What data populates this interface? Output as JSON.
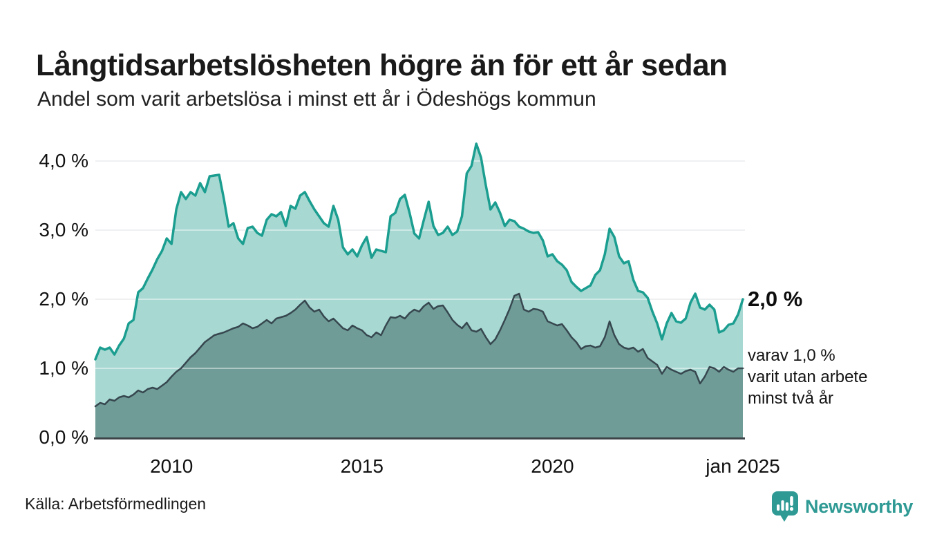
{
  "header": {
    "title": "Långtidsarbetslösheten högre än för ett år sedan",
    "subtitle": "Andel som varit arbetslösa i minst ett år i Ödeshögs kommun"
  },
  "chart_data": {
    "type": "area",
    "title": "Långtidsarbetslösheten högre än för ett år sedan",
    "subtitle": "Andel som varit arbetslösa i minst ett år i Ödeshögs kommun",
    "unit": "%",
    "x_start": 2008.0,
    "x_end": 2025.0,
    "ylim": [
      0,
      4.3
    ],
    "grid": "horizontal",
    "legend_position": "none",
    "x_ticks": [
      {
        "value": 2010,
        "label": "2010"
      },
      {
        "value": 2015,
        "label": "2015"
      },
      {
        "value": 2020,
        "label": "2020"
      },
      {
        "value": 2025,
        "label": "jan 2025"
      }
    ],
    "y_ticks": [
      {
        "value": 4,
        "label": "4,0 %"
      },
      {
        "value": 3,
        "label": "3,0 %"
      },
      {
        "value": 2,
        "label": "2,0 %"
      },
      {
        "value": 1,
        "label": "1,0 %"
      },
      {
        "value": 0,
        "label": "0,0 %"
      }
    ],
    "series": [
      {
        "name": "arbetslösa minst ett år",
        "latest_value": 2.0,
        "values": [
          1.13,
          1.3,
          1.27,
          1.3,
          1.2,
          1.33,
          1.43,
          1.65,
          1.7,
          2.1,
          2.16,
          2.3,
          2.43,
          2.58,
          2.7,
          2.88,
          2.8,
          3.3,
          3.55,
          3.45,
          3.55,
          3.5,
          3.68,
          3.55,
          3.78,
          3.79,
          3.8,
          3.45,
          3.05,
          3.1,
          2.88,
          2.8,
          3.03,
          3.05,
          2.96,
          2.92,
          3.15,
          3.23,
          3.2,
          3.26,
          3.06,
          3.35,
          3.31,
          3.5,
          3.55,
          3.42,
          3.3,
          3.2,
          3.1,
          3.05,
          3.35,
          3.15,
          2.75,
          2.65,
          2.72,
          2.62,
          2.78,
          2.9,
          2.6,
          2.72,
          2.7,
          2.68,
          3.2,
          3.25,
          3.45,
          3.51,
          3.25,
          2.95,
          2.88,
          3.15,
          3.41,
          3.06,
          2.93,
          2.96,
          3.05,
          2.93,
          2.98,
          3.2,
          3.82,
          3.93,
          4.25,
          4.05,
          3.65,
          3.3,
          3.4,
          3.25,
          3.06,
          3.15,
          3.13,
          3.05,
          3.02,
          2.98,
          2.96,
          2.97,
          2.85,
          2.62,
          2.65,
          2.55,
          2.5,
          2.42,
          2.25,
          2.18,
          2.12,
          2.16,
          2.2,
          2.35,
          2.42,
          2.65,
          3.02,
          2.9,
          2.62,
          2.52,
          2.55,
          2.28,
          2.12,
          2.1,
          2.02,
          1.82,
          1.65,
          1.42,
          1.65,
          1.8,
          1.68,
          1.66,
          1.72,
          1.95,
          2.08,
          1.88,
          1.85,
          1.92,
          1.85,
          1.52,
          1.55,
          1.63,
          1.65,
          1.78,
          2.0
        ]
      },
      {
        "name": "arbetslösa minst två år",
        "latest_value": 1.0,
        "values": [
          0.45,
          0.5,
          0.48,
          0.55,
          0.53,
          0.58,
          0.6,
          0.58,
          0.62,
          0.68,
          0.65,
          0.7,
          0.72,
          0.7,
          0.75,
          0.8,
          0.88,
          0.95,
          1.0,
          1.08,
          1.16,
          1.22,
          1.3,
          1.38,
          1.43,
          1.48,
          1.5,
          1.52,
          1.55,
          1.58,
          1.6,
          1.65,
          1.62,
          1.58,
          1.6,
          1.65,
          1.7,
          1.65,
          1.72,
          1.74,
          1.76,
          1.8,
          1.85,
          1.92,
          1.98,
          1.88,
          1.82,
          1.85,
          1.75,
          1.68,
          1.72,
          1.65,
          1.58,
          1.55,
          1.62,
          1.58,
          1.55,
          1.48,
          1.45,
          1.52,
          1.48,
          1.62,
          1.74,
          1.73,
          1.76,
          1.72,
          1.8,
          1.85,
          1.82,
          1.9,
          1.95,
          1.86,
          1.9,
          1.91,
          1.81,
          1.7,
          1.63,
          1.58,
          1.66,
          1.55,
          1.53,
          1.57,
          1.45,
          1.35,
          1.42,
          1.55,
          1.7,
          1.86,
          2.05,
          2.08,
          1.85,
          1.82,
          1.86,
          1.85,
          1.82,
          1.68,
          1.65,
          1.62,
          1.64,
          1.55,
          1.45,
          1.38,
          1.28,
          1.32,
          1.33,
          1.3,
          1.32,
          1.45,
          1.68,
          1.48,
          1.35,
          1.3,
          1.28,
          1.3,
          1.24,
          1.28,
          1.15,
          1.1,
          1.05,
          0.92,
          1.02,
          0.98,
          0.95,
          0.92,
          0.96,
          0.98,
          0.95,
          0.78,
          0.88,
          1.02,
          1.0,
          0.95,
          1.02,
          0.98,
          0.95,
          1.0,
          1.0
        ]
      }
    ]
  },
  "annotations": {
    "latest_total_label": "2,0 %",
    "breakdown_lines": [
      "varav 1,0 %",
      "varit utan arbete",
      "minst två år"
    ]
  },
  "footer": {
    "source": "Källa: Arbetsförmedlingen",
    "logo_text": "Newsworthy"
  },
  "colors": {
    "accent_teal": "#1b9e90",
    "light_fill": "#a7d8d1",
    "dark_fill": "#6f9c96",
    "dark_line": "#37474f",
    "baseline": "#3c4449",
    "grid": "#e2e3e7",
    "grid_over_fill": "rgba(255,255,255,0.45)",
    "text": "#111111",
    "logo": "#2f9a94"
  }
}
